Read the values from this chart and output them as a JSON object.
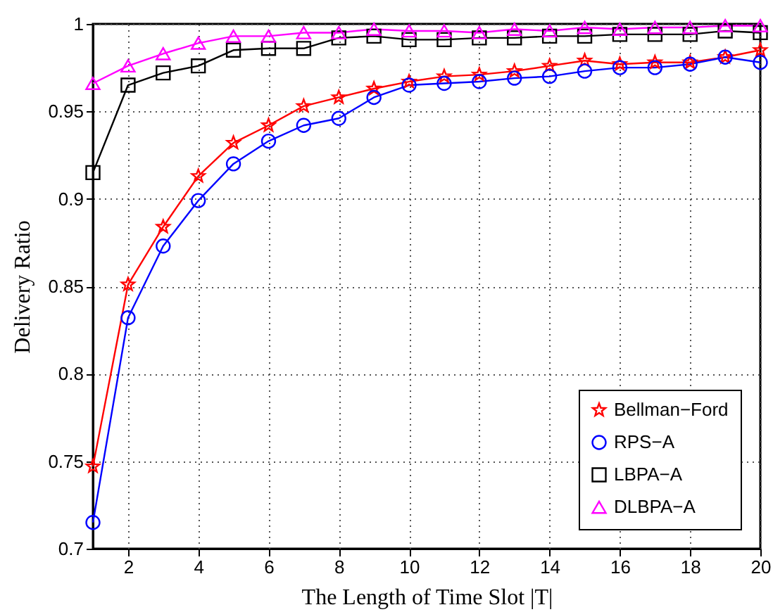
{
  "chart_data": {
    "type": "line",
    "xlabel": "The Length of Time Slot |T|",
    "ylabel": "Delivery Ratio",
    "x": [
      1,
      2,
      3,
      4,
      5,
      6,
      7,
      8,
      9,
      10,
      11,
      12,
      13,
      14,
      15,
      16,
      17,
      18,
      19,
      20
    ],
    "xlim": [
      1,
      20
    ],
    "xticks": [
      2,
      4,
      6,
      8,
      10,
      12,
      14,
      16,
      18,
      20
    ],
    "ylim": [
      0.7,
      1
    ],
    "yticks": [
      0.7,
      0.75,
      0.8,
      0.85,
      0.9,
      0.95,
      1
    ],
    "grid": true,
    "legend": "bottom right",
    "line_style": "solid",
    "series": [
      {
        "name": "Bellman−Ford",
        "color": "#ff0000",
        "marker": "star",
        "values": [
          0.747,
          0.851,
          0.884,
          0.913,
          0.932,
          0.942,
          0.953,
          0.958,
          0.963,
          0.967,
          0.97,
          0.971,
          0.973,
          0.976,
          0.979,
          0.977,
          0.978,
          0.978,
          0.981,
          0.985
        ]
      },
      {
        "name": "RPS−A",
        "color": "#0000ff",
        "marker": "circle",
        "values": [
          0.715,
          0.832,
          0.873,
          0.899,
          0.92,
          0.933,
          0.942,
          0.946,
          0.958,
          0.965,
          0.966,
          0.967,
          0.969,
          0.97,
          0.973,
          0.975,
          0.975,
          0.977,
          0.981,
          0.978
        ]
      },
      {
        "name": "LBPA−A",
        "color": "#000000",
        "marker": "square",
        "values": [
          0.915,
          0.965,
          0.972,
          0.976,
          0.985,
          0.986,
          0.986,
          0.992,
          0.993,
          0.991,
          0.991,
          0.992,
          0.992,
          0.993,
          0.993,
          0.994,
          0.994,
          0.994,
          0.996,
          0.995
        ]
      },
      {
        "name": "DLBPA−A",
        "color": "#ff00ff",
        "marker": "triangle",
        "values": [
          0.966,
          0.976,
          0.983,
          0.989,
          0.993,
          0.993,
          0.995,
          0.995,
          0.997,
          0.996,
          0.996,
          0.995,
          0.997,
          0.996,
          0.998,
          0.997,
          0.998,
          0.998,
          0.999,
          0.999
        ]
      }
    ]
  }
}
